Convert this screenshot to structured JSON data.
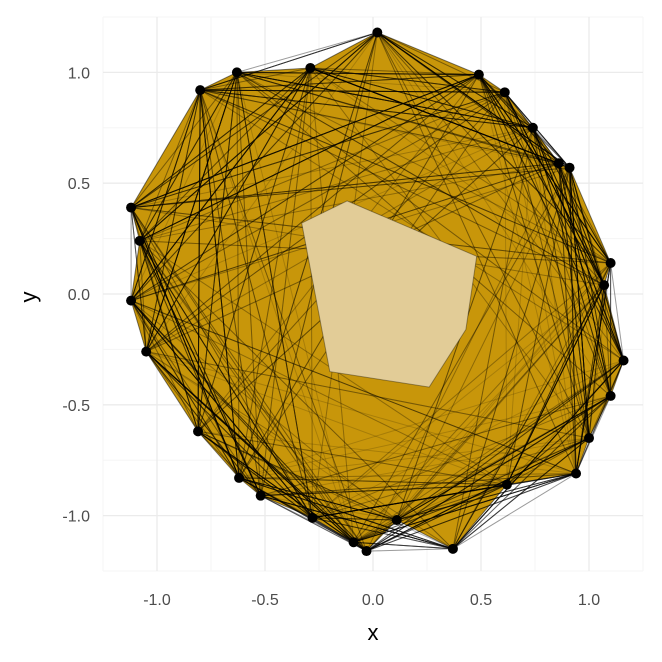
{
  "colors": {
    "background": "#ffffff",
    "grid_major": "#ebebeb",
    "grid_minor": "#f5f5f5",
    "polygon_fill": "#c8960a",
    "inner_fill": "#e2cc97",
    "edge": "#000000",
    "point": "#000000"
  },
  "chart_data": {
    "type": "scatter",
    "title": "",
    "xlabel": "x",
    "ylabel": "y",
    "xlim": [
      -1.25,
      1.25
    ],
    "ylim": [
      -1.25,
      1.25
    ],
    "x_ticks": [
      -1.0,
      -0.5,
      0.0,
      0.5,
      1.0
    ],
    "x_tick_labels": [
      "-1.0",
      "-0.5",
      "0.0",
      "0.5",
      "1.0"
    ],
    "y_ticks": [
      -1.0,
      -0.5,
      0.0,
      0.5,
      1.0
    ],
    "y_tick_labels": [
      "-1.0",
      "-0.5",
      "0.0",
      "0.5",
      "1.0"
    ],
    "grid": true,
    "legend": "none",
    "points": [
      {
        "x": 0.02,
        "y": 1.18
      },
      {
        "x": 0.49,
        "y": 0.99
      },
      {
        "x": 0.61,
        "y": 0.91
      },
      {
        "x": 0.74,
        "y": 0.75
      },
      {
        "x": 0.86,
        "y": 0.59
      },
      {
        "x": 0.91,
        "y": 0.57
      },
      {
        "x": 1.1,
        "y": 0.14
      },
      {
        "x": 1.07,
        "y": 0.04
      },
      {
        "x": 1.16,
        "y": -0.3
      },
      {
        "x": 1.1,
        "y": -0.46
      },
      {
        "x": 1.0,
        "y": -0.65
      },
      {
        "x": 0.94,
        "y": -0.81
      },
      {
        "x": 0.62,
        "y": -0.86
      },
      {
        "x": 0.37,
        "y": -1.15
      },
      {
        "x": 0.11,
        "y": -1.02
      },
      {
        "x": -0.03,
        "y": -1.16
      },
      {
        "x": -0.09,
        "y": -1.12
      },
      {
        "x": -0.28,
        "y": -1.01
      },
      {
        "x": -0.52,
        "y": -0.91
      },
      {
        "x": -0.62,
        "y": -0.83
      },
      {
        "x": -0.81,
        "y": -0.62
      },
      {
        "x": -1.05,
        "y": -0.26
      },
      {
        "x": -1.12,
        "y": -0.03
      },
      {
        "x": -1.08,
        "y": 0.24
      },
      {
        "x": -1.12,
        "y": 0.39
      },
      {
        "x": -0.8,
        "y": 0.92
      },
      {
        "x": -0.63,
        "y": 1.0
      },
      {
        "x": -0.29,
        "y": 1.02
      }
    ],
    "inner_polygon": [
      {
        "x": -0.12,
        "y": 0.42
      },
      {
        "x": 0.48,
        "y": 0.17
      },
      {
        "x": 0.43,
        "y": -0.16
      },
      {
        "x": 0.26,
        "y": -0.42
      },
      {
        "x": -0.2,
        "y": -0.35
      },
      {
        "x": -0.33,
        "y": 0.32
      }
    ]
  }
}
